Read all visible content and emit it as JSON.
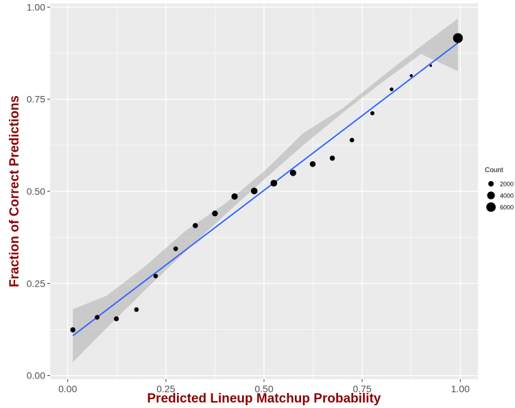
{
  "chart_data": {
    "type": "scatter",
    "xlabel": "Predicted Lineup Matchup Probability",
    "ylabel": "Fraction of Correct Predictions",
    "xlim": [
      -0.045,
      1.045
    ],
    "ylim": [
      -0.01,
      1.01
    ],
    "x_ticks": [
      0.0,
      0.25,
      0.5,
      0.75,
      1.0
    ],
    "x_tick_labels": [
      "0.00",
      "0.25",
      "0.50",
      "0.75",
      "1.00"
    ],
    "y_ticks": [
      0.0,
      0.25,
      0.5,
      0.75,
      1.0
    ],
    "y_tick_labels": [
      "0.00",
      "0.25",
      "0.50",
      "0.75",
      "1.00"
    ],
    "grid": true,
    "points": [
      {
        "x": 0.013,
        "y": 0.124,
        "count": 1800
      },
      {
        "x": 0.075,
        "y": 0.158,
        "count": 1500
      },
      {
        "x": 0.124,
        "y": 0.154,
        "count": 1650
      },
      {
        "x": 0.175,
        "y": 0.179,
        "count": 1400
      },
      {
        "x": 0.224,
        "y": 0.27,
        "count": 1300
      },
      {
        "x": 0.275,
        "y": 0.344,
        "count": 1450
      },
      {
        "x": 0.325,
        "y": 0.407,
        "count": 1800
      },
      {
        "x": 0.375,
        "y": 0.44,
        "count": 2300
      },
      {
        "x": 0.425,
        "y": 0.486,
        "count": 2700
      },
      {
        "x": 0.475,
        "y": 0.501,
        "count": 3000
      },
      {
        "x": 0.525,
        "y": 0.522,
        "count": 3100
      },
      {
        "x": 0.574,
        "y": 0.55,
        "count": 2700
      },
      {
        "x": 0.624,
        "y": 0.574,
        "count": 2300
      },
      {
        "x": 0.674,
        "y": 0.59,
        "count": 1800
      },
      {
        "x": 0.724,
        "y": 0.639,
        "count": 1400
      },
      {
        "x": 0.776,
        "y": 0.712,
        "count": 1150
      },
      {
        "x": 0.825,
        "y": 0.777,
        "count": 900
      },
      {
        "x": 0.875,
        "y": 0.814,
        "count": 600
      },
      {
        "x": 0.925,
        "y": 0.841,
        "count": 400
      },
      {
        "x": 0.994,
        "y": 0.916,
        "count": 6500
      }
    ],
    "fit_line": {
      "x": [
        0.013,
        0.994
      ],
      "y": [
        0.108,
        0.903
      ],
      "color": "#3366ff"
    },
    "confidence_band": {
      "x": [
        0.013,
        0.1,
        0.2,
        0.3,
        0.4,
        0.5,
        0.6,
        0.7,
        0.8,
        0.9,
        0.994
      ],
      "lower": [
        0.036,
        0.13,
        0.235,
        0.337,
        0.436,
        0.532,
        0.625,
        0.713,
        0.795,
        0.873,
        0.826
      ],
      "upper": [
        0.18,
        0.217,
        0.299,
        0.393,
        0.466,
        0.554,
        0.658,
        0.725,
        0.811,
        0.894,
        0.969
      ],
      "color": "#999999"
    },
    "colors": {
      "panel": "#ebebeb",
      "grid_major": "#ffffff",
      "points": "#000000",
      "axis_title": "#8b0000"
    },
    "legend": {
      "title": "Count",
      "placement": "right",
      "entries": [
        {
          "label": "2000",
          "value": 2000
        },
        {
          "label": "4000",
          "value": 4000
        },
        {
          "label": "6000",
          "value": 6000
        }
      ]
    }
  }
}
